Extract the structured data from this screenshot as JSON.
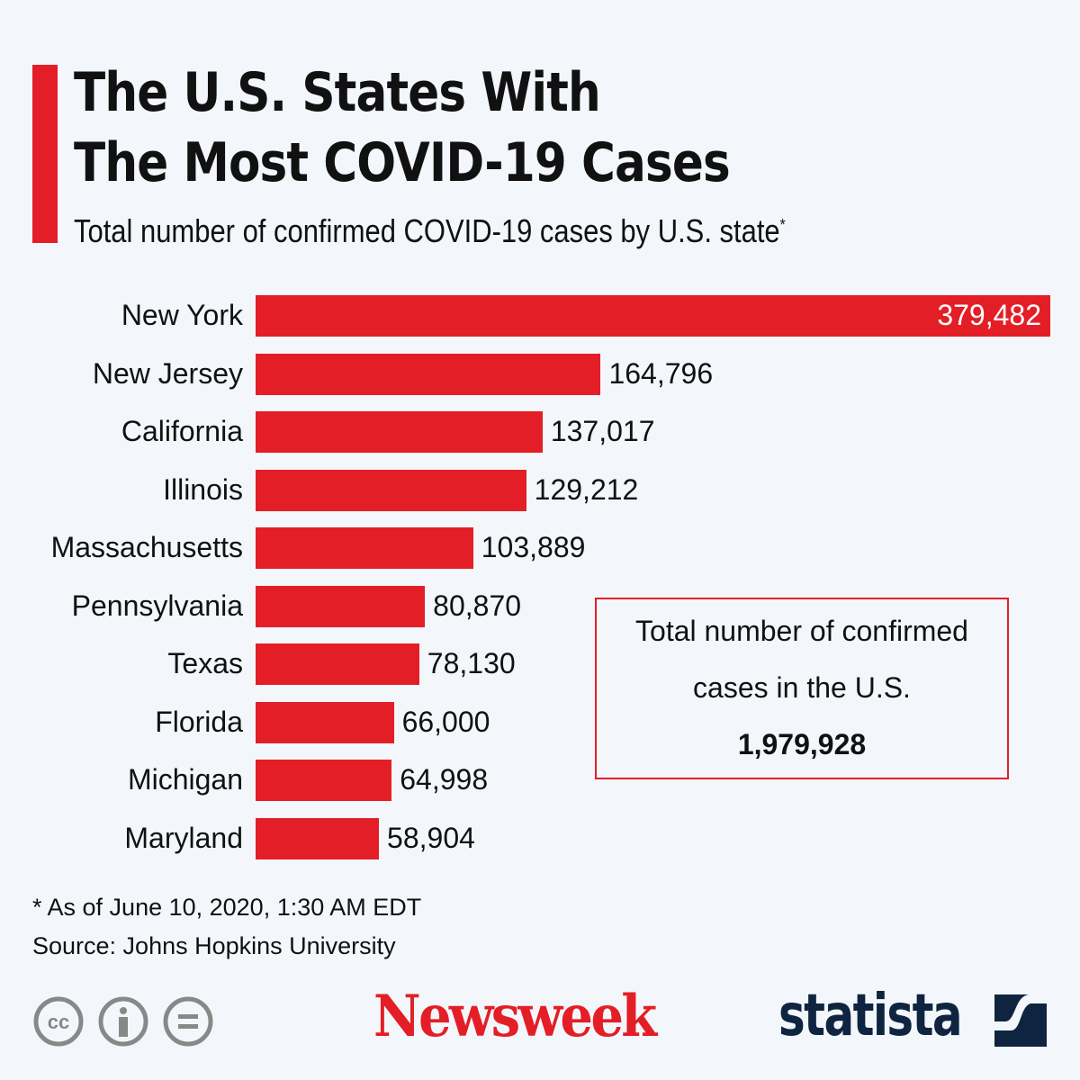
{
  "chart_data": {
    "type": "bar",
    "orientation": "horizontal",
    "title": "The U.S. States With The Most COVID-19 Cases",
    "title_lines": [
      "The U.S. States With",
      "The Most COVID-19 Cases"
    ],
    "subtitle": "Total number of confirmed COVID-19 cases by U.S. state",
    "subtitle_mark": "*",
    "categories": [
      "New York",
      "New Jersey",
      "California",
      "Illinois",
      "Massachusetts",
      "Pennsylvania",
      "Texas",
      "Florida",
      "Michigan",
      "Maryland"
    ],
    "values": [
      379482,
      164796,
      137017,
      129212,
      103889,
      80870,
      78130,
      66000,
      64998,
      58904
    ],
    "value_labels": [
      "379,482",
      "164,796",
      "137,017",
      "129,212",
      "103,889",
      "80,870",
      "78,130",
      "66,000",
      "64,998",
      "58,904"
    ],
    "xlim": [
      0,
      379482
    ],
    "grid": false,
    "bar_color": "#e41e26",
    "annotation": {
      "text_lines": [
        "Total number of confirmed",
        "cases in the U.S."
      ],
      "value": "1,979,928"
    }
  },
  "footer": {
    "note": "* As of June 10, 2020, 1:30 AM EDT",
    "source": "Source: Johns Hopkins University"
  },
  "logos": {
    "newsweek": "Newsweek",
    "statista": "statista",
    "license_icons": [
      "cc-icon",
      "by-icon",
      "nd-icon"
    ]
  }
}
